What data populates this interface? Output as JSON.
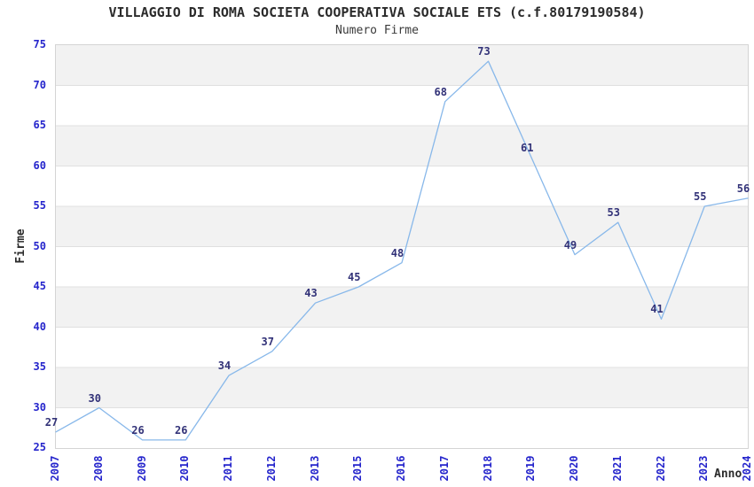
{
  "title": "VILLAGGIO DI ROMA SOCIETA COOPERATIVA SOCIALE ETS (c.f.80179190584)",
  "subtitle": "Numero Firme",
  "chart_data": {
    "type": "line",
    "title": "VILLAGGIO DI ROMA SOCIETA COOPERATIVA SOCIALE ETS (c.f.80179190584)",
    "subtitle": "Numero Firme",
    "categories": [
      "2007",
      "2008",
      "2009",
      "2010",
      "2011",
      "2012",
      "2013",
      "2015",
      "2016",
      "2017",
      "2018",
      "2019",
      "2020",
      "2021",
      "2022",
      "2023",
      "2024"
    ],
    "values": [
      27,
      30,
      26,
      26,
      34,
      37,
      43,
      45,
      48,
      68,
      73,
      61,
      49,
      53,
      41,
      55,
      56
    ],
    "xlabel": "Anno",
    "ylabel": "Firme",
    "ylim": [
      25,
      75
    ],
    "ytick_step": 5,
    "yticks": [
      25,
      30,
      35,
      40,
      45,
      50,
      55,
      60,
      65,
      70,
      75
    ],
    "grid": "alternating-horizontal-bands",
    "legend": "none",
    "data_labels_visible": true,
    "colors": {
      "line": "#88b8ea",
      "tick_label": "#2525cc",
      "data_label": "#323278",
      "band": "#f2f2f2",
      "gridline": "#e0e0e0",
      "plot_border": "#d4d4d4",
      "title_text": "#2b2b2b",
      "background": "#ffffff"
    }
  }
}
